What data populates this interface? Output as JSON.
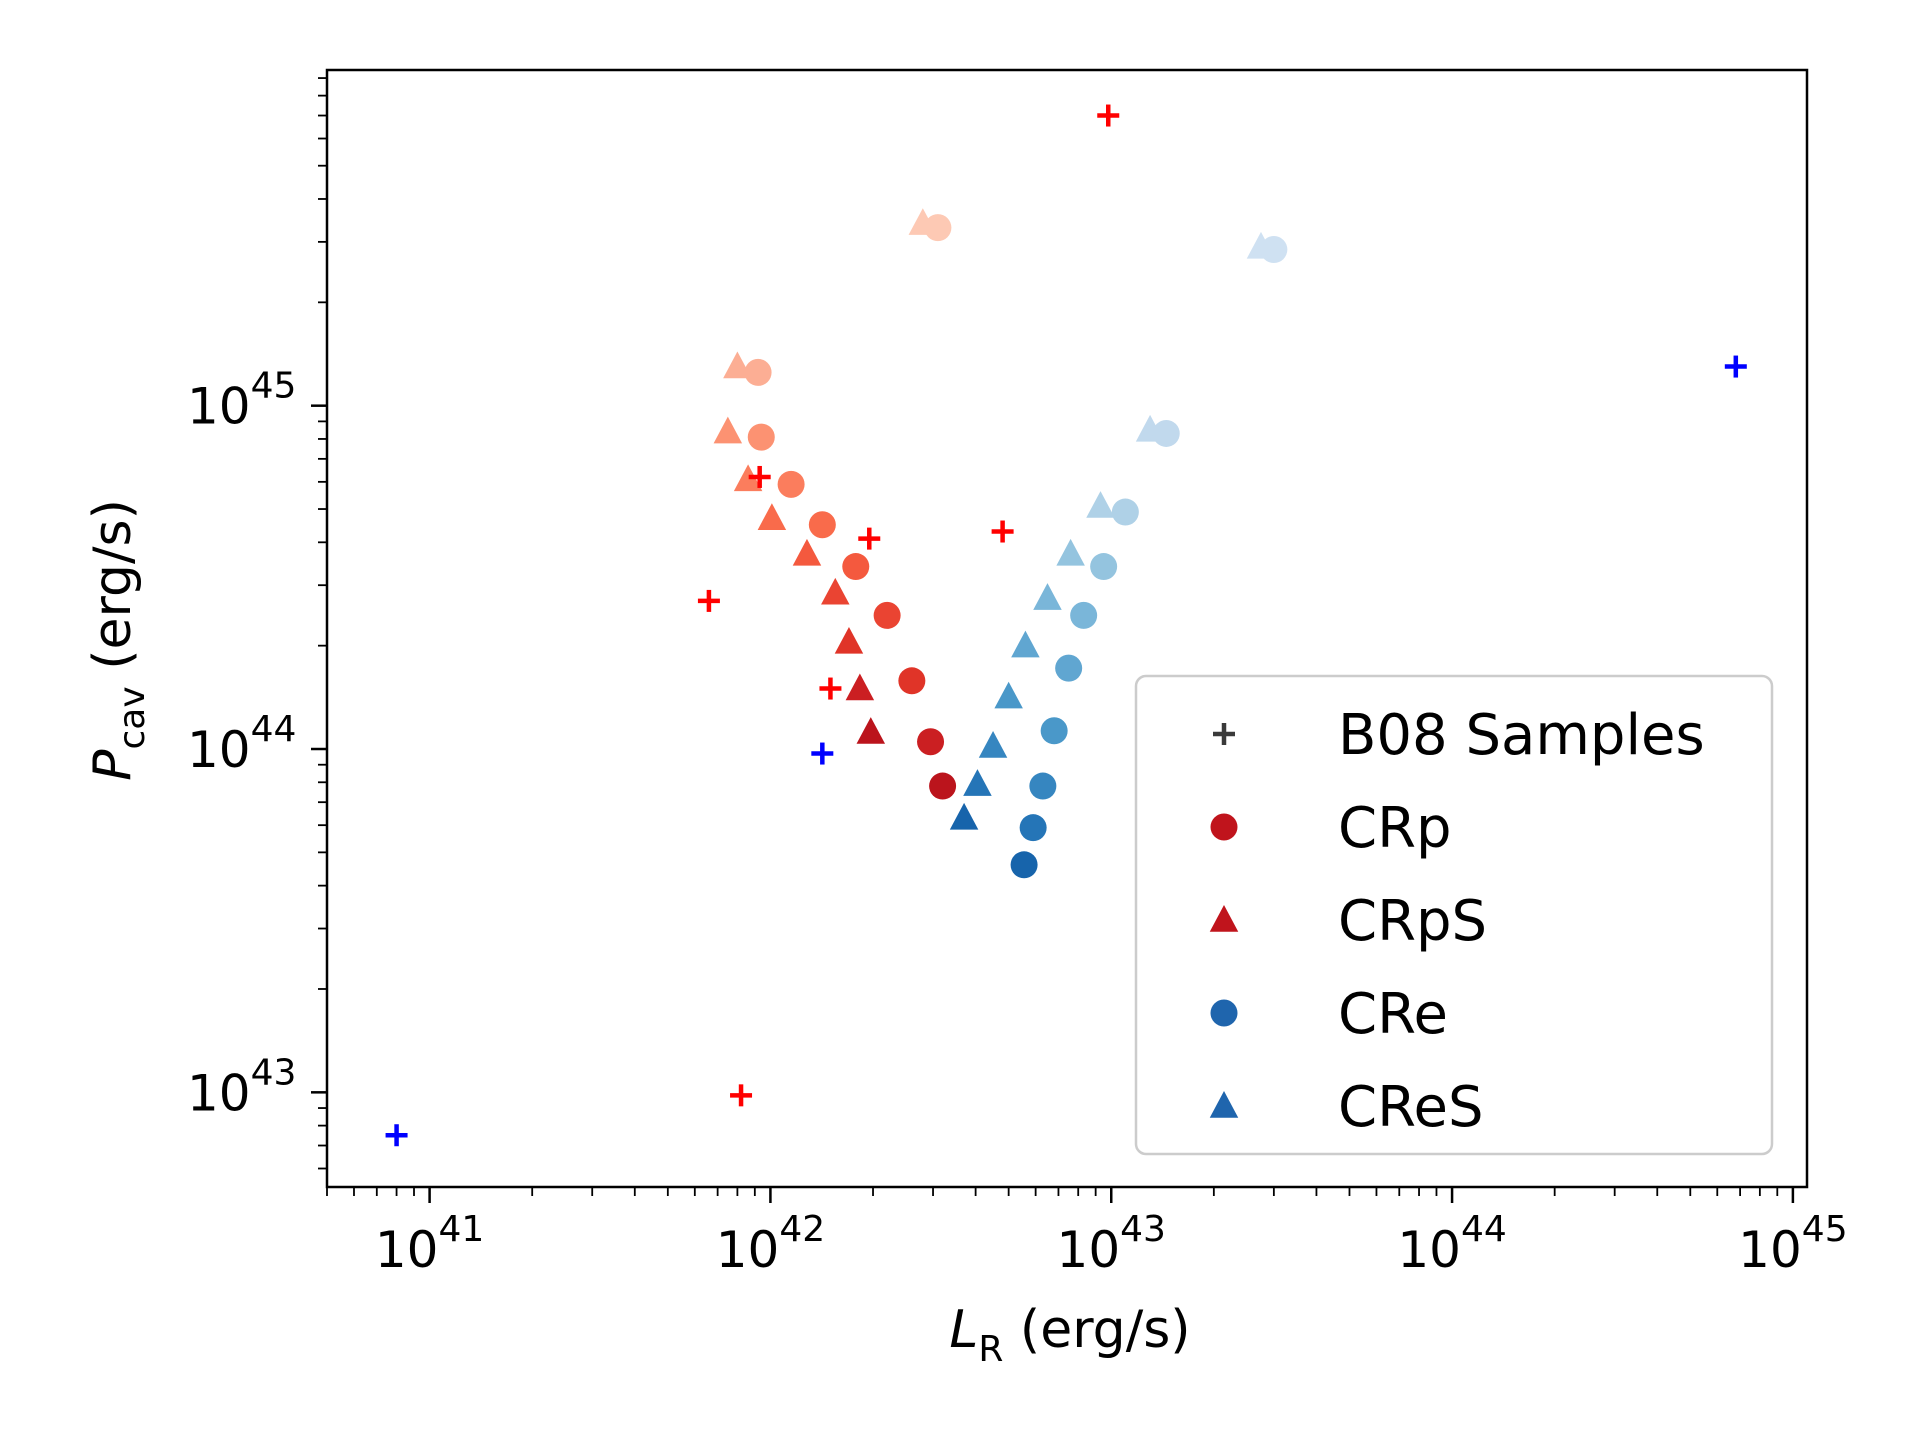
{
  "chart_data": {
    "type": "scatter",
    "xscale": "log",
    "yscale": "log",
    "xlim": [
      5e+40,
      1.1e+45
    ],
    "ylim": [
      5.3e+42,
      9.5e+45
    ],
    "xticks": [
      1e+41,
      1e+42,
      1e+43,
      1e+44,
      1e+45
    ],
    "yticks": [
      1e+43,
      1e+44,
      1e+45
    ],
    "x_tick_labels": [
      {
        "base": "10",
        "exp": "41"
      },
      {
        "base": "10",
        "exp": "42"
      },
      {
        "base": "10",
        "exp": "43"
      },
      {
        "base": "10",
        "exp": "44"
      },
      {
        "base": "10",
        "exp": "45"
      }
    ],
    "y_tick_labels": [
      {
        "base": "10",
        "exp": "43"
      },
      {
        "base": "10",
        "exp": "44"
      },
      {
        "base": "10",
        "exp": "45"
      }
    ],
    "xlabel": {
      "symbol": "L",
      "sub": "R",
      "unit": " (erg/s)"
    },
    "ylabel": {
      "symbol": "P",
      "sub": "cav",
      "unit": " (erg/s)"
    },
    "grid": false,
    "legend_position": "lower-right",
    "legend": [
      {
        "label": "B08 Samples",
        "marker": "plus",
        "color": "#3a3a3a"
      },
      {
        "label": "CRp",
        "marker": "circle",
        "color": "#c0141c"
      },
      {
        "label": "CRpS",
        "marker": "triangle",
        "color": "#c0141c"
      },
      {
        "label": "CRe",
        "marker": "circle",
        "color": "#1f65ad"
      },
      {
        "label": "CReS",
        "marker": "triangle",
        "color": "#1f65ad"
      }
    ],
    "series": [
      {
        "key": "b08_red",
        "marker": "plus",
        "color": "#ff0000",
        "points": [
          {
            "x": 9.8e+42,
            "y": 7e+45
          },
          {
            "x": 9.3e+41,
            "y": 6.2e+44
          },
          {
            "x": 1.95e+42,
            "y": 4.1e+44
          },
          {
            "x": 4.8e+42,
            "y": 4.3e+44
          },
          {
            "x": 6.6e+41,
            "y": 2.7e+44
          },
          {
            "x": 1.5e+42,
            "y": 1.5e+44
          },
          {
            "x": 8.2e+41,
            "y": 9.8e+42
          }
        ]
      },
      {
        "key": "b08_blue",
        "marker": "plus",
        "color": "#0000ff",
        "points": [
          {
            "x": 8e+40,
            "y": 7.5e+42
          },
          {
            "x": 1.42e+42,
            "y": 9.7e+43
          },
          {
            "x": 6.8e+44,
            "y": 1.3e+45
          }
        ]
      },
      {
        "key": "crp",
        "marker": "circle",
        "points": [
          {
            "x": 3.1e+42,
            "y": 3.3e+45,
            "color": "#fdc9b4"
          },
          {
            "x": 9.2e+41,
            "y": 1.25e+45,
            "color": "#fcae94"
          },
          {
            "x": 9.4e+41,
            "y": 8.1e+44,
            "color": "#fc9272"
          },
          {
            "x": 1.15e+42,
            "y": 5.9e+44,
            "color": "#fb7d5d"
          },
          {
            "x": 1.42e+42,
            "y": 4.5e+44,
            "color": "#f96b4b"
          },
          {
            "x": 1.78e+42,
            "y": 3.4e+44,
            "color": "#f4593e"
          },
          {
            "x": 2.2e+42,
            "y": 2.45e+44,
            "color": "#ea4432"
          },
          {
            "x": 2.6e+42,
            "y": 1.58e+44,
            "color": "#e03428"
          },
          {
            "x": 2.95e+42,
            "y": 1.05e+44,
            "color": "#cb1f22"
          },
          {
            "x": 3.2e+42,
            "y": 7.8e+43,
            "color": "#bb141c"
          }
        ]
      },
      {
        "key": "crps",
        "marker": "triangle",
        "points": [
          {
            "x": 2.8e+42,
            "y": 3.4e+45,
            "color": "#fdc9b4"
          },
          {
            "x": 8e+41,
            "y": 1.3e+45,
            "color": "#fcae94"
          },
          {
            "x": 7.5e+41,
            "y": 8.4e+44,
            "color": "#fc9272"
          },
          {
            "x": 8.6e+41,
            "y": 6.1e+44,
            "color": "#fb7d5d"
          },
          {
            "x": 1.01e+42,
            "y": 4.7e+44,
            "color": "#f96b4b"
          },
          {
            "x": 1.28e+42,
            "y": 3.7e+44,
            "color": "#f4593e"
          },
          {
            "x": 1.55e+42,
            "y": 2.85e+44,
            "color": "#ea4432"
          },
          {
            "x": 1.7e+42,
            "y": 2.05e+44,
            "color": "#e03428"
          },
          {
            "x": 1.83e+42,
            "y": 1.5e+44,
            "color": "#cb1f22"
          },
          {
            "x": 1.97e+42,
            "y": 1.12e+44,
            "color": "#bb141c"
          }
        ]
      },
      {
        "key": "cre",
        "marker": "circle",
        "points": [
          {
            "x": 3e+43,
            "y": 2.85e+45,
            "color": "#cfe1f2"
          },
          {
            "x": 1.45e+43,
            "y": 8.3e+44,
            "color": "#c1d9ed"
          },
          {
            "x": 1.1e+43,
            "y": 4.9e+44,
            "color": "#afd1e7"
          },
          {
            "x": 9.5e+42,
            "y": 3.4e+44,
            "color": "#94c4df"
          },
          {
            "x": 8.3e+42,
            "y": 2.45e+44,
            "color": "#7ab6d9"
          },
          {
            "x": 7.5e+42,
            "y": 1.72e+44,
            "color": "#60a6d1"
          },
          {
            "x": 6.8e+42,
            "y": 1.13e+44,
            "color": "#4a98c9"
          },
          {
            "x": 6.3e+42,
            "y": 7.8e+43,
            "color": "#3686c0"
          },
          {
            "x": 5.9e+42,
            "y": 5.9e+43,
            "color": "#2575b7"
          },
          {
            "x": 5.55e+42,
            "y": 4.6e+43,
            "color": "#1764ab"
          }
        ]
      },
      {
        "key": "cres",
        "marker": "triangle",
        "points": [
          {
            "x": 2.75e+43,
            "y": 2.9e+45,
            "color": "#cfe1f2"
          },
          {
            "x": 1.3e+43,
            "y": 8.5e+44,
            "color": "#c1d9ed"
          },
          {
            "x": 9.3e+42,
            "y": 5.1e+44,
            "color": "#afd1e7"
          },
          {
            "x": 7.6e+42,
            "y": 3.7e+44,
            "color": "#94c4df"
          },
          {
            "x": 6.5e+42,
            "y": 2.75e+44,
            "color": "#7ab6d9"
          },
          {
            "x": 5.6e+42,
            "y": 2e+44,
            "color": "#60a6d1"
          },
          {
            "x": 5e+42,
            "y": 1.42e+44,
            "color": "#4a98c9"
          },
          {
            "x": 4.5e+42,
            "y": 1.02e+44,
            "color": "#3686c0"
          },
          {
            "x": 4.05e+42,
            "y": 7.9e+43,
            "color": "#2575b7"
          },
          {
            "x": 3.7e+42,
            "y": 6.3e+43,
            "color": "#1764ab"
          }
        ]
      }
    ]
  }
}
